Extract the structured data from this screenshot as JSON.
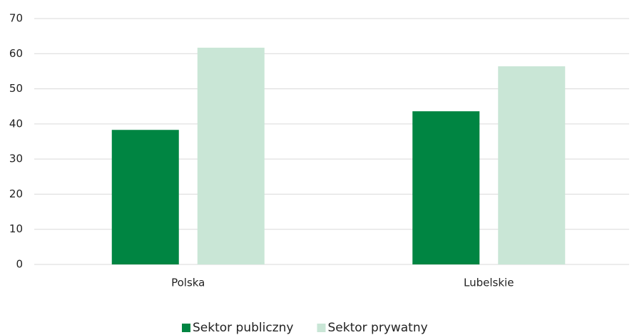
{
  "chart_data": {
    "type": "bar",
    "categories": [
      "Polska",
      "Lubelskie"
    ],
    "series": [
      {
        "name": "Sektor publiczny",
        "color": "#008542",
        "values": [
          38.3,
          43.6
        ]
      },
      {
        "name": "Sektor prywatny",
        "color": "#c9e6d6",
        "values": [
          61.7,
          56.4
        ]
      }
    ],
    "ylim": [
      0,
      70
    ],
    "yticks": [
      0,
      10,
      20,
      30,
      40,
      50,
      60,
      70
    ],
    "grid": true,
    "legend": "bottom"
  }
}
